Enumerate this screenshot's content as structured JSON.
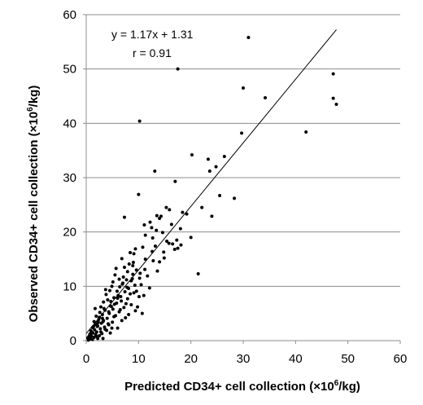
{
  "chart_data": {
    "type": "scatter",
    "title": "",
    "xlabel": {
      "before": "Predicted CD34+ cell collection (×10",
      "sup": "6",
      "after": "/kg)"
    },
    "ylabel": {
      "before": "Observed CD34+ cell collection (×10",
      "sup": "6",
      "after": "/kg)"
    },
    "xlim": [
      0,
      60
    ],
    "ylim": [
      0,
      60
    ],
    "xticks": [
      0,
      10,
      20,
      30,
      40,
      50,
      60
    ],
    "yticks": [
      0,
      10,
      20,
      30,
      40,
      50,
      60
    ],
    "xtick_labels": [
      "0",
      "10",
      "20",
      "30",
      "40",
      "50",
      "60"
    ],
    "ytick_labels": [
      "0",
      "10",
      "20",
      "30",
      "40",
      "50",
      "60"
    ],
    "grid": "horizontal",
    "colors": {
      "points": "#000000",
      "grid": "#8c8c8c",
      "axis": "#8c8c8c",
      "fit_line": "#000000"
    },
    "annotations": {
      "equation": "y = 1.17x + 1.31",
      "r": "r = 0.91"
    },
    "fit_line": {
      "slope": 1.17,
      "intercept": 1.31,
      "x_range": [
        0,
        47.8
      ]
    },
    "points": [
      [
        31,
        55.8
      ],
      [
        17.5,
        50
      ],
      [
        30,
        46.5
      ],
      [
        47.2,
        49.1
      ],
      [
        47.2,
        44.6
      ],
      [
        47.8,
        43.5
      ],
      [
        34.2,
        44.7
      ],
      [
        10.2,
        40.4
      ],
      [
        42,
        38.4
      ],
      [
        29.7,
        38.2
      ],
      [
        20.2,
        34.2
      ],
      [
        26.4,
        33.9
      ],
      [
        23.3,
        33.4
      ],
      [
        24.8,
        32
      ],
      [
        23.6,
        31.2
      ],
      [
        13.1,
        31.2
      ],
      [
        17,
        29.3
      ],
      [
        10,
        26.9
      ],
      [
        25.5,
        26.7
      ],
      [
        28.3,
        26.2
      ],
      [
        22.1,
        24.5
      ],
      [
        15.3,
        24.5
      ],
      [
        15.9,
        24.1
      ],
      [
        18.4,
        23.6
      ],
      [
        19.2,
        23.3
      ],
      [
        13.5,
        23
      ],
      [
        14.3,
        22.9
      ],
      [
        7.3,
        22.7
      ],
      [
        24,
        22.9
      ],
      [
        14,
        22.5
      ],
      [
        12.2,
        21.8
      ],
      [
        16.3,
        21.4
      ],
      [
        11.1,
        21.3
      ],
      [
        12.5,
        20.8
      ],
      [
        18,
        20.6
      ],
      [
        13.4,
        20.3
      ],
      [
        14.6,
        19.9
      ],
      [
        11.3,
        19.4
      ],
      [
        12.7,
        18.9
      ],
      [
        20,
        19
      ],
      [
        17.3,
        18.5
      ],
      [
        15.4,
        18.3
      ],
      [
        16.5,
        17.8
      ],
      [
        18.1,
        17.6
      ],
      [
        13.2,
        17.4
      ],
      [
        10.8,
        17.2
      ],
      [
        17.5,
        17
      ],
      [
        9.4,
        16.9
      ],
      [
        16.9,
        16.8
      ],
      [
        12.6,
        16.4
      ],
      [
        8.4,
        16.2
      ],
      [
        9.1,
        16
      ],
      [
        14.9,
        15.2
      ],
      [
        11.3,
        15
      ],
      [
        9,
        14.4
      ],
      [
        14,
        14.5
      ],
      [
        8.2,
        14.1
      ],
      [
        7.3,
        13.5
      ],
      [
        11.2,
        13.1
      ],
      [
        9.6,
        13
      ],
      [
        21.4,
        12.3
      ],
      [
        7.9,
        12.7
      ],
      [
        8.9,
        12.2
      ],
      [
        5.5,
        12.1
      ],
      [
        7.1,
        11.7
      ],
      [
        10.2,
        11.5
      ],
      [
        6.3,
        11.3
      ],
      [
        8.6,
        11
      ],
      [
        5.1,
        10.8
      ],
      [
        6.9,
        10.4
      ],
      [
        9.3,
        10.2
      ],
      [
        4.9,
        10
      ],
      [
        6.4,
        9.9
      ],
      [
        8.1,
        9.6
      ],
      [
        4.5,
        9.2
      ],
      [
        7.4,
        9
      ],
      [
        9.1,
        8.8
      ],
      [
        3.8,
        8.5
      ],
      [
        6.1,
        8.3
      ],
      [
        10.1,
        8.1
      ],
      [
        5.3,
        7.9
      ],
      [
        7.9,
        7.7
      ],
      [
        4.1,
        7.5
      ],
      [
        6.7,
        7.3
      ],
      [
        3.3,
        7.1
      ],
      [
        5.8,
        6.9
      ],
      [
        8.6,
        6.6
      ],
      [
        4.6,
        6.4
      ],
      [
        2.8,
        6.2
      ],
      [
        7.2,
        6.1
      ],
      [
        5.1,
        5.8
      ],
      [
        3.6,
        5.6
      ],
      [
        9.4,
        5.5
      ],
      [
        6.3,
        5.3
      ],
      [
        2.6,
        5.2
      ],
      [
        4.4,
        5
      ],
      [
        10.7,
        5
      ],
      [
        3.1,
        4.8
      ],
      [
        5.6,
        4.6
      ],
      [
        1.9,
        4.5
      ],
      [
        7.5,
        4.2
      ],
      [
        4,
        4.1
      ],
      [
        2.4,
        3.9
      ],
      [
        3.3,
        3.7
      ],
      [
        1.5,
        3.5
      ],
      [
        5,
        3.4
      ],
      [
        2.9,
        3.2
      ],
      [
        1.8,
        3
      ],
      [
        4.3,
        2.9
      ],
      [
        2.2,
        2.7
      ],
      [
        3.5,
        2.5
      ],
      [
        1.2,
        2.4
      ],
      [
        2.7,
        2.2
      ],
      [
        1.6,
        2
      ],
      [
        3.9,
        1.9
      ],
      [
        0.9,
        1.8
      ],
      [
        2,
        1.6
      ],
      [
        1.3,
        1.4
      ],
      [
        3,
        1.3
      ],
      [
        0.7,
        1.2
      ],
      [
        1.8,
        1.1
      ],
      [
        2.5,
        0.9
      ],
      [
        1,
        0.8
      ],
      [
        0.5,
        0.7
      ],
      [
        1.5,
        0.6
      ],
      [
        0.3,
        0.5
      ],
      [
        2.2,
        0.4
      ],
      [
        0.8,
        0.3
      ],
      [
        1.2,
        0.2
      ],
      [
        0.4,
        0.1
      ],
      [
        3.2,
        0.4
      ],
      [
        4.6,
        1.4
      ],
      [
        6,
        2.3
      ],
      [
        2.5,
        4.3
      ],
      [
        1.7,
        5.9
      ],
      [
        3.7,
        9.4
      ],
      [
        5.7,
        13.3
      ],
      [
        6.8,
        15.1
      ],
      [
        7.7,
        11.2
      ],
      [
        6,
        7.8
      ],
      [
        4.8,
        6.3
      ],
      [
        3.2,
        3.5
      ],
      [
        2.1,
        2.6
      ],
      [
        1.1,
        1.5
      ],
      [
        0.6,
        0.9
      ],
      [
        1.9,
        0.8
      ],
      [
        2.8,
        1.6
      ],
      [
        3.6,
        2.1
      ],
      [
        4.2,
        3.1
      ],
      [
        5.3,
        4.4
      ],
      [
        6.5,
        5.7
      ],
      [
        7.6,
        6.8
      ],
      [
        8.4,
        8.6
      ],
      [
        9.6,
        9.1
      ],
      [
        10.5,
        10.3
      ],
      [
        11.7,
        11.9
      ],
      [
        12.8,
        14.7
      ],
      [
        8.9,
        13.8
      ],
      [
        7,
        10.6
      ],
      [
        5.9,
        9.1
      ],
      [
        4.7,
        7.2
      ],
      [
        3.4,
        5.9
      ],
      [
        2.3,
        3.4
      ],
      [
        1.4,
        2.6
      ],
      [
        0.9,
        1.3
      ],
      [
        4.9,
        2.3
      ],
      [
        6.8,
        3.7
      ],
      [
        8.1,
        4.8
      ],
      [
        9.8,
        6.2
      ],
      [
        11,
        8.3
      ],
      [
        12.1,
        9.7
      ],
      [
        13.6,
        12.8
      ],
      [
        14.8,
        16.3
      ],
      [
        15.8,
        17.9
      ],
      [
        10.3,
        12.4
      ],
      [
        8.8,
        11.4
      ],
      [
        7.8,
        9.8
      ],
      [
        6.6,
        8.1
      ],
      [
        5.4,
        6.7
      ],
      [
        4.3,
        5.3
      ],
      [
        3.1,
        4.1
      ],
      [
        2.2,
        3.3
      ]
    ]
  }
}
